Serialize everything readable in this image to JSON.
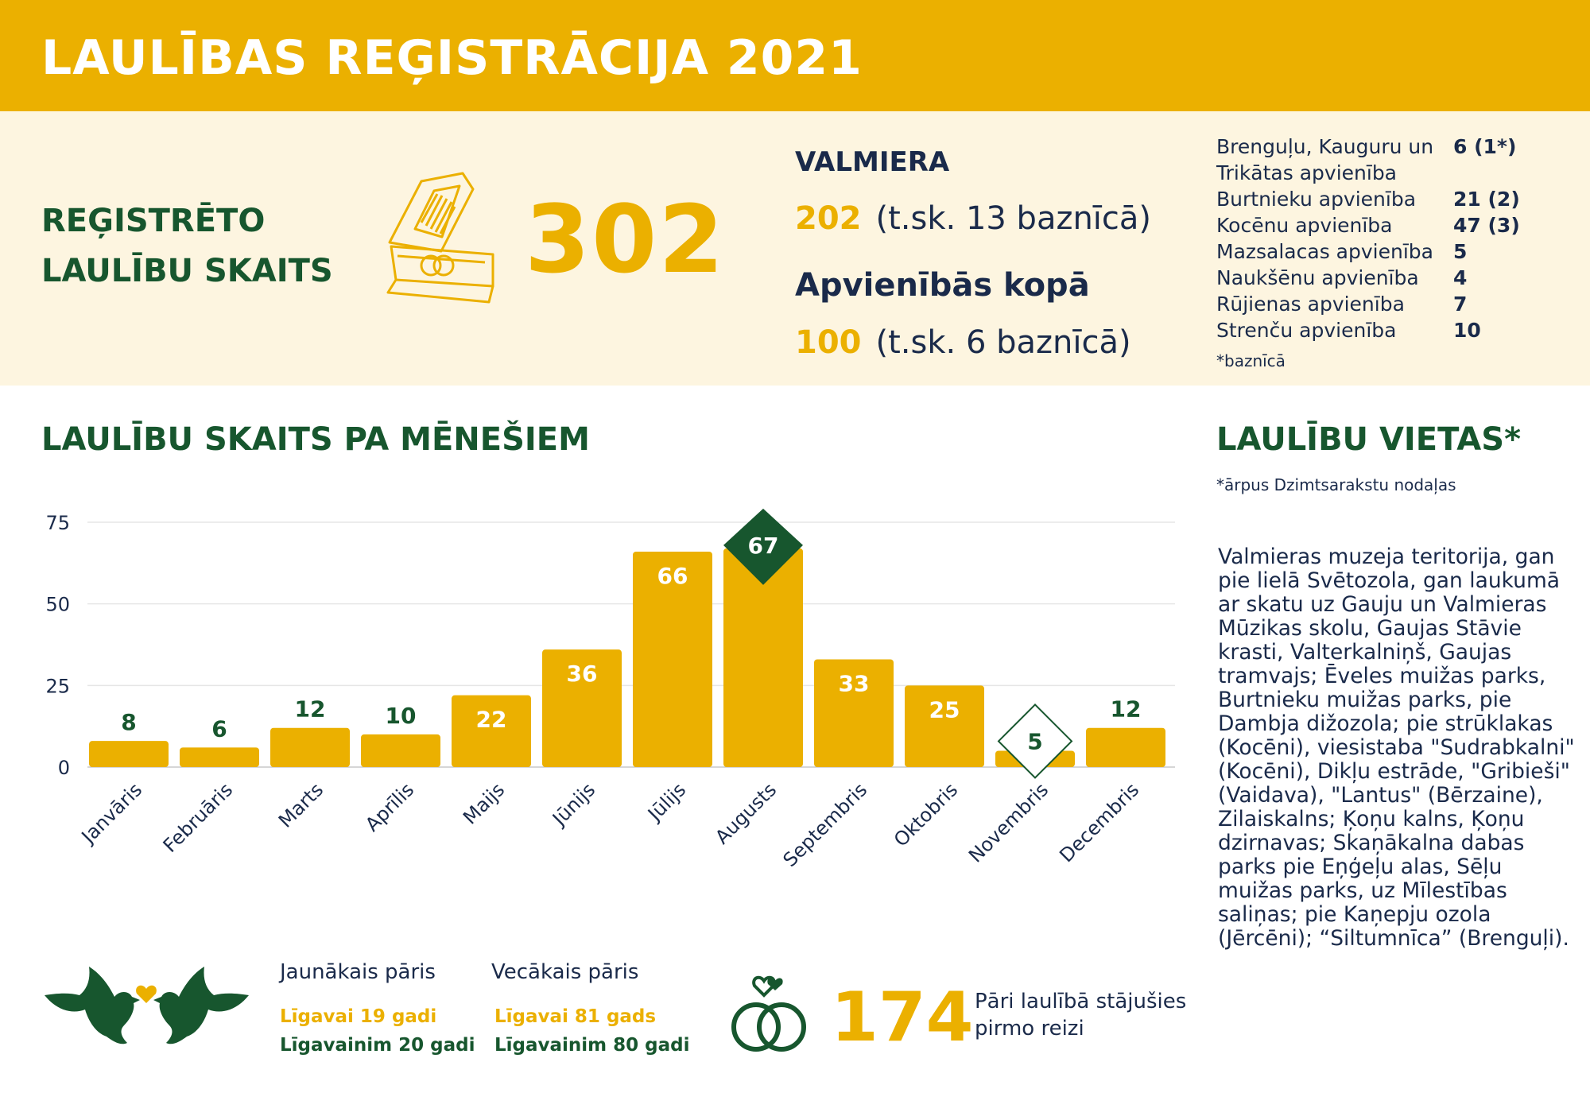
{
  "header": {
    "title": "LAULĪBAS REĢISTRĀCIJA 2021"
  },
  "summary": {
    "label_line1": "REĢISTRĒTO",
    "label_line2": "LAULĪBU SKAITS",
    "total": "302"
  },
  "valmiera": {
    "title": "VALMIERA",
    "count": "202",
    "note": "(t.sk. 13 baznīcā)"
  },
  "apvienibas": {
    "title": "Apvienībās kopā",
    "count": "100",
    "note": "(t.sk. 6 baznīcā)",
    "items": [
      {
        "name": "Brenguļu, Kauguru un",
        "value": "6 (1*)"
      },
      {
        "name": "Trikātas apvienība",
        "value": ""
      },
      {
        "name": "Burtnieku apvienība",
        "value": "21 (2)"
      },
      {
        "name": "Kocēnu apvienība",
        "value": "47 (3)"
      },
      {
        "name": "Mazsalacas apvienība",
        "value": "5"
      },
      {
        "name": "Naukšēnu apvienība",
        "value": "4"
      },
      {
        "name": "Rūjienas apvienība",
        "value": "7"
      },
      {
        "name": "Strenču apvienība",
        "value": "10"
      }
    ],
    "footnote": "*baznīcā"
  },
  "chart_data": {
    "type": "bar",
    "title": "LAULĪBU SKAITS PA MĒNEŠIEM",
    "categories": [
      "Janvāris",
      "Februāris",
      "Marts",
      "Aprīlis",
      "Maijs",
      "Jūnijs",
      "Jūlijs",
      "Augusts",
      "Septembris",
      "Oktobris",
      "Novembris",
      "Decembris"
    ],
    "values": [
      8,
      6,
      12,
      10,
      22,
      36,
      66,
      67,
      33,
      25,
      5,
      12
    ],
    "ylim": [
      0,
      75
    ],
    "yticks": [
      0,
      25,
      50,
      75
    ],
    "grid": true,
    "highlight_max": "Augusts",
    "highlight_min": "Novembris",
    "colors": {
      "bar": "#ebb000",
      "label_inside": "#ffffff",
      "label_outside": "#17562e",
      "accent": "#17562e"
    }
  },
  "places": {
    "title": "LAULĪBU VIETAS*",
    "note": "*ārpus Dzimtsarakstu nodaļas",
    "text": "Valmieras muzeja teritorija, gan pie lielā Svētozola, gan laukumā ar skatu uz Gauju un Valmieras Mūzikas skolu, Gaujas Stāvie krasti, Valterkalniņš, Gaujas tramvajs; Ēveles muižas parks, Burtnieku muižas parks, pie Dambja dižozola; pie strūklakas (Kocēni), viesistaba \"Sudrabkalni\" (Kocēni), Dikļu estrāde, \"Gribieši\" (Vaidava), \"Lantus\" (Bērzaine), Zilaiskalns; Ķoņu kalns, Ķoņu dzirnavas; Skaņākalna dabas parks pie Eņģeļu alas, Sēļu muižas parks, uz Mīlestības saliņas; pie Kaņepju ozola (Jērcēni); “Siltumnīca” (Brenguļi)."
  },
  "couples": {
    "youngest_heading": "Jaunākais pāris",
    "oldest_heading": "Vecākais pāris",
    "youngest_bride": "Līgavai 19 gadi",
    "youngest_groom": "Līgavainim 20 gadi",
    "oldest_bride": "Līgavai 81 gads",
    "oldest_groom": "Līgavainim 80 gadi"
  },
  "first_marriage": {
    "count": "174",
    "text": "Pāri laulībā stājušies pirmo reizi"
  },
  "icons": {
    "ring_box": "ring-box-icon",
    "doves": "doves-icon",
    "heart": "heart-icon",
    "rings": "wedding-rings-icon"
  },
  "colors": {
    "gold": "#ebb000",
    "green": "#17562e",
    "navy": "#1a2a4a",
    "cream": "#fdf5e0"
  }
}
